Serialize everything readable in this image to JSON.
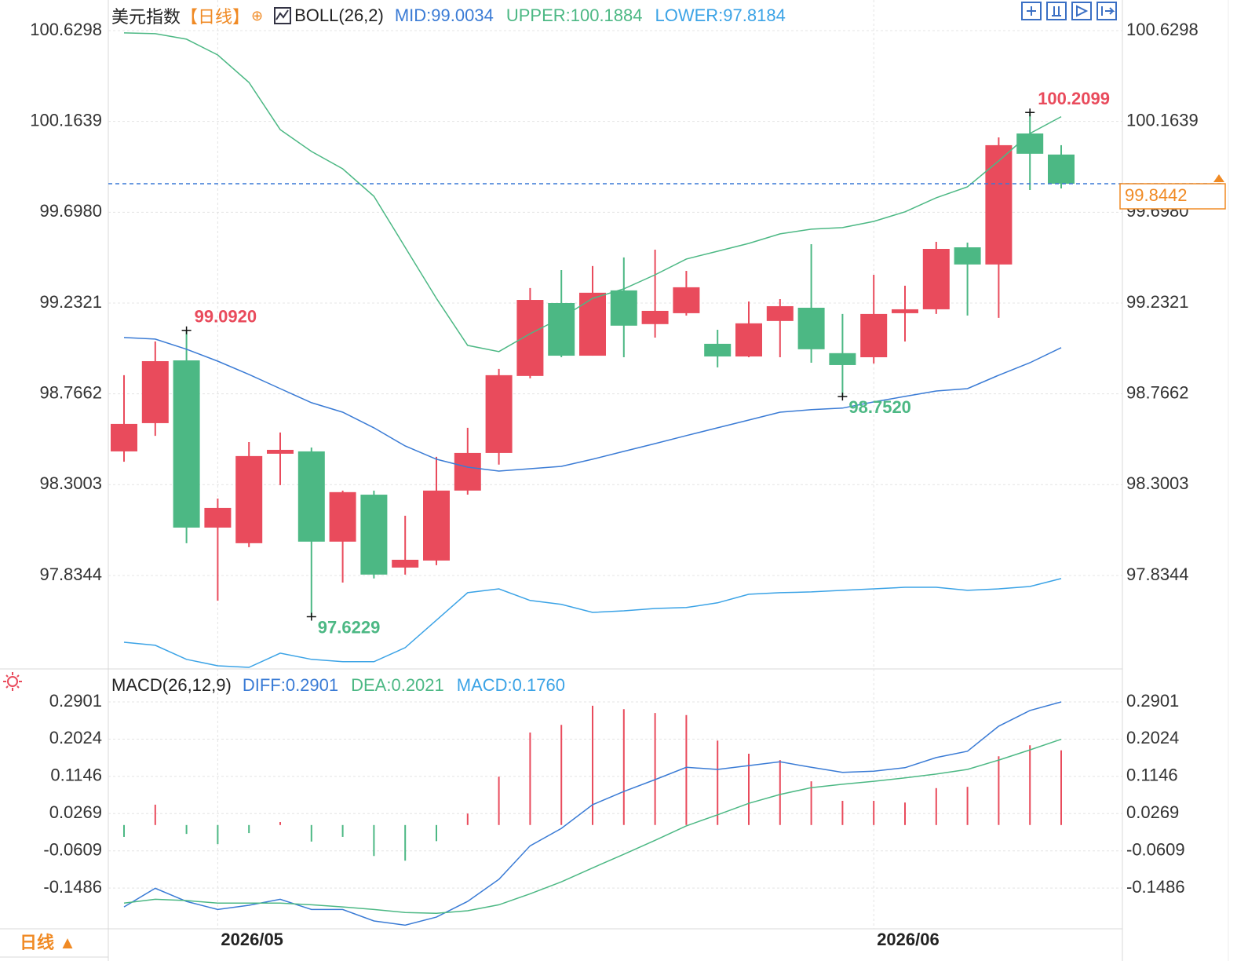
{
  "period_selector": "日线 ▲",
  "chart_data": [
    {
      "type": "candlestick",
      "title": "美元指数",
      "period": "【日线】",
      "indicator": "BOLL(26,2)",
      "categories": [
        null,
        null,
        null,
        "2026/05",
        null,
        null,
        null,
        null,
        null,
        null,
        null,
        null,
        null,
        null,
        null,
        null,
        null,
        null,
        null,
        null,
        null,
        null,
        null,
        null,
        "2026/06",
        null,
        null,
        null,
        null,
        null,
        null
      ],
      "open": [
        98.471,
        98.616,
        98.938,
        98.08,
        98.0,
        98.459,
        98.471,
        98.008,
        98.249,
        97.875,
        97.911,
        98.27,
        98.463,
        98.858,
        99.232,
        98.962,
        99.297,
        99.124,
        99.18,
        99.023,
        98.958,
        99.14,
        99.208,
        98.975,
        98.954,
        99.18,
        99.2,
        99.518,
        99.43,
        100.102,
        99.994
      ],
      "high": [
        98.862,
        99.035,
        99.092,
        98.229,
        98.519,
        98.568,
        98.491,
        98.27,
        98.27,
        98.141,
        98.443,
        98.592,
        98.894,
        99.309,
        99.401,
        99.422,
        99.466,
        99.506,
        99.397,
        99.095,
        99.24,
        99.252,
        99.534,
        99.176,
        99.377,
        99.321,
        99.546,
        99.542,
        100.082,
        100.2099,
        100.042
      ],
      "low": [
        98.418,
        98.551,
        98.0,
        97.705,
        97.98,
        98.298,
        97.6229,
        97.798,
        97.819,
        97.839,
        97.887,
        98.249,
        98.403,
        98.846,
        98.954,
        98.962,
        98.954,
        99.055,
        99.168,
        98.902,
        98.954,
        98.954,
        98.926,
        98.752,
        98.922,
        99.035,
        99.176,
        99.168,
        99.156,
        99.812,
        99.82
      ],
      "close": [
        98.612,
        98.934,
        98.08,
        98.181,
        98.447,
        98.479,
        98.008,
        98.262,
        97.839,
        97.915,
        98.27,
        98.463,
        98.862,
        99.248,
        98.962,
        99.285,
        99.116,
        99.192,
        99.313,
        98.958,
        99.128,
        99.216,
        98.995,
        98.914,
        99.176,
        99.2,
        99.51,
        99.43,
        100.042,
        99.998,
        99.8442
      ],
      "high_labels": [
        null,
        null,
        "99.0920",
        null,
        null,
        null,
        null,
        null,
        null,
        null,
        null,
        null,
        null,
        null,
        null,
        null,
        null,
        null,
        null,
        null,
        null,
        null,
        null,
        null,
        null,
        null,
        null,
        null,
        null,
        "100.2099",
        null
      ],
      "low_labels": [
        null,
        null,
        null,
        null,
        null,
        null,
        "97.6229",
        null,
        null,
        null,
        null,
        null,
        null,
        null,
        null,
        null,
        null,
        null,
        null,
        null,
        null,
        null,
        null,
        "98.7520",
        null,
        null,
        null,
        null,
        null,
        null,
        null
      ],
      "up_color": "#e94b5c",
      "down_color": "#4cb884",
      "last_price_color": "#f08a24",
      "series": [
        {
          "name": "MID:99.0034",
          "color": "#3a7bd5",
          "values": [
            99.055,
            99.047,
            98.995,
            98.934,
            98.866,
            98.793,
            98.721,
            98.672,
            98.592,
            98.499,
            98.431,
            98.39,
            98.37,
            98.382,
            98.394,
            98.431,
            98.471,
            98.511,
            98.552,
            98.592,
            98.632,
            98.672,
            98.685,
            98.693,
            98.725,
            98.753,
            98.781,
            98.793,
            98.862,
            98.926,
            99.0034
          ]
        },
        {
          "name": "UPPER:100.1884",
          "color": "#4cb884",
          "values": [
            100.618,
            100.614,
            100.586,
            100.505,
            100.364,
            100.122,
            100.01,
            99.921,
            99.78,
            99.518,
            99.256,
            99.015,
            98.983,
            99.075,
            99.156,
            99.256,
            99.305,
            99.377,
            99.458,
            99.498,
            99.538,
            99.587,
            99.611,
            99.619,
            99.651,
            99.7,
            99.772,
            99.828,
            99.961,
            100.102,
            100.1884
          ]
        },
        {
          "name": "LOWER:97.8184",
          "color": "#3ba3e6",
          "values": [
            97.492,
            97.476,
            97.404,
            97.371,
            97.363,
            97.436,
            97.404,
            97.392,
            97.392,
            97.464,
            97.605,
            97.746,
            97.766,
            97.706,
            97.686,
            97.645,
            97.653,
            97.665,
            97.67,
            97.694,
            97.738,
            97.746,
            97.75,
            97.758,
            97.766,
            97.774,
            97.774,
            97.758,
            97.766,
            97.778,
            97.8184
          ]
        }
      ],
      "ylim": [
        97.363,
        100.666
      ],
      "yticks": [
        100.6298,
        100.1639,
        {
          "value": 99.698,
          "label": "99.6980"
        },
        99.2321,
        98.7662,
        98.3003,
        97.8344
      ],
      "grid": true
    },
    {
      "type": "macd",
      "title": "MACD(26,12,9)",
      "series": [
        {
          "name": "DIFF:0.2901",
          "color": "#3a7bd5",
          "values": [
            -0.193,
            -0.149,
            -0.18,
            -0.199,
            -0.189,
            -0.175,
            -0.199,
            -0.199,
            -0.226,
            -0.236,
            -0.217,
            -0.18,
            -0.128,
            -0.049,
            -0.008,
            0.048,
            0.079,
            0.107,
            0.136,
            0.131,
            0.14,
            0.149,
            0.136,
            0.124,
            0.127,
            0.135,
            0.159,
            0.174,
            0.233,
            0.27,
            0.2901
          ]
        },
        {
          "name": "DEA:0.2021",
          "color": "#4cb884",
          "values": [
            -0.184,
            -0.175,
            -0.178,
            -0.184,
            -0.184,
            -0.184,
            -0.188,
            -0.193,
            -0.199,
            -0.206,
            -0.208,
            -0.202,
            -0.188,
            -0.162,
            -0.134,
            -0.101,
            -0.069,
            -0.036,
            -0.002,
            0.024,
            0.051,
            0.072,
            0.088,
            0.096,
            0.103,
            0.111,
            0.12,
            0.131,
            0.153,
            0.177,
            0.2021
          ]
        }
      ],
      "histogram": {
        "name": "MACD:0.1760",
        "color": "#3ba3e6",
        "up_color": "#e94b5c",
        "down_color": "#4cb884",
        "values": [
          -0.028,
          0.048,
          -0.021,
          -0.045,
          -0.019,
          0.007,
          -0.039,
          -0.028,
          -0.073,
          -0.084,
          -0.038,
          0.027,
          0.114,
          0.218,
          0.236,
          0.281,
          0.273,
          0.264,
          0.259,
          0.199,
          0.168,
          0.153,
          0.103,
          0.057,
          0.057,
          0.053,
          0.087,
          0.09,
          0.162,
          0.188,
          0.176
        ]
      },
      "ylim": [
        -0.239,
        0.353
      ],
      "yticks": [
        0.2901,
        0.2024,
        0.1146,
        0.0269,
        -0.0609,
        -0.1486
      ],
      "grid": true
    }
  ]
}
